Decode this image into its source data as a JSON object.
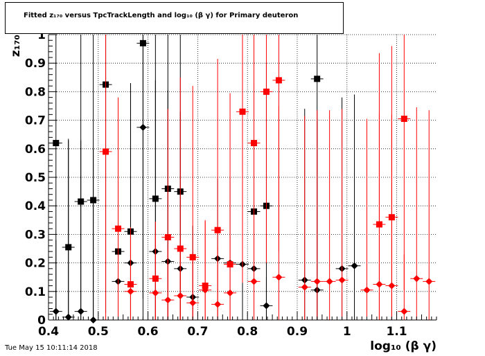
{
  "title": "Fitted  z₁₇₀  versus TpcTrackLength and log₁₀ (β γ) for Primary deuteron",
  "timestamp": "Tue May 15 10:11:14 2018",
  "chart_data": {
    "type": "scatter",
    "xlabel": "log₁₀ (β γ)",
    "ylabel": "z₁₇₀",
    "xlim": [
      0.4,
      1.18
    ],
    "ylim": [
      0,
      1
    ],
    "grid": true,
    "x_ticks": [
      "0.4",
      "0.5",
      "0.6",
      "0.7",
      "0.8",
      "0.9",
      "1",
      "1.1"
    ],
    "y_ticks": [
      "0",
      "0.1",
      "0.2",
      "0.3",
      "0.4",
      "0.5",
      "0.6",
      "0.7",
      "0.8",
      "0.9",
      "1"
    ],
    "series": [
      {
        "color": "#000000",
        "marker": "square",
        "points": [
          {
            "x": 0.415,
            "y": 0.62,
            "err": 0.62
          },
          {
            "x": 0.44,
            "y": 0.255,
            "err": 0.38
          },
          {
            "x": 0.465,
            "y": 0.415,
            "err": 0.6
          },
          {
            "x": 0.49,
            "y": 0.42,
            "err": 0.6
          },
          {
            "x": 0.515,
            "y": 0.825,
            "err": 0.8
          },
          {
            "x": 0.54,
            "y": 0.24,
            "err": 0.45
          },
          {
            "x": 0.565,
            "y": 0.31,
            "err": 0.52
          },
          {
            "x": 0.59,
            "y": 0.97,
            "err": 1
          },
          {
            "x": 0.615,
            "y": 0.425,
            "err": 0.6
          },
          {
            "x": 0.64,
            "y": 0.46,
            "err": 0.7
          },
          {
            "x": 0.665,
            "y": 0.45,
            "err": 0.6
          },
          {
            "x": 0.813,
            "y": 0.38,
            "err": 0.45
          },
          {
            "x": 0.838,
            "y": 0.4,
            "err": 0.5
          },
          {
            "x": 0.94,
            "y": 0.845,
            "err": 0.85
          }
        ]
      },
      {
        "color": "#000000",
        "marker": "diamond",
        "points": [
          {
            "x": 0.415,
            "y": 0.03,
            "err": 0.25
          },
          {
            "x": 0.44,
            "y": 0.01,
            "err": 0.62
          },
          {
            "x": 0.465,
            "y": 0.03,
            "err": 0.6
          },
          {
            "x": 0.49,
            "y": 0.0,
            "err": 0.6
          },
          {
            "x": 0.54,
            "y": 0.135,
            "err": 0.35
          },
          {
            "x": 0.565,
            "y": 0.2,
            "err": 0.63
          },
          {
            "x": 0.59,
            "y": 0.675,
            "err": 0.6
          },
          {
            "x": 0.615,
            "y": 0.24,
            "err": 0.6
          },
          {
            "x": 0.64,
            "y": 0.205,
            "err": 0.6
          },
          {
            "x": 0.665,
            "y": 0.18,
            "err": 0.55
          },
          {
            "x": 0.69,
            "y": 0.08,
            "err": 0.25
          },
          {
            "x": 0.74,
            "y": 0.215,
            "err": 0.28
          },
          {
            "x": 0.765,
            "y": 0.2,
            "err": 0.3
          },
          {
            "x": 0.79,
            "y": 0.195,
            "err": 0.3
          },
          {
            "x": 0.813,
            "y": 0.18,
            "err": 0.3
          },
          {
            "x": 0.838,
            "y": 0.05,
            "err": 0.1
          },
          {
            "x": 0.915,
            "y": 0.14,
            "err": 0.6
          },
          {
            "x": 0.94,
            "y": 0.105,
            "err": 0.6
          },
          {
            "x": 0.99,
            "y": 0.18,
            "err": 0.6
          },
          {
            "x": 1.015,
            "y": 0.19,
            "err": 0.6
          }
        ]
      },
      {
        "color": "#ff0000",
        "marker": "square",
        "points": [
          {
            "x": 0.515,
            "y": 0.59,
            "err": 0.6
          },
          {
            "x": 0.54,
            "y": 0.32,
            "err": 0.46
          },
          {
            "x": 0.565,
            "y": 0.125,
            "err": 0.2
          },
          {
            "x": 0.615,
            "y": 0.145,
            "err": 0.2
          },
          {
            "x": 0.64,
            "y": 0.29,
            "err": 0.45
          },
          {
            "x": 0.665,
            "y": 0.25,
            "err": 0.6
          },
          {
            "x": 0.69,
            "y": 0.22,
            "err": 0.6
          },
          {
            "x": 0.715,
            "y": 0.12,
            "err": 0.23
          },
          {
            "x": 0.74,
            "y": 0.315,
            "err": 0.6
          },
          {
            "x": 0.765,
            "y": 0.195,
            "err": 0.6
          },
          {
            "x": 0.79,
            "y": 0.73,
            "err": 0.6
          },
          {
            "x": 0.813,
            "y": 0.62,
            "err": 0.6
          },
          {
            "x": 0.838,
            "y": 0.8,
            "err": 0.6
          },
          {
            "x": 0.863,
            "y": 0.84,
            "err": 0.6
          },
          {
            "x": 1.065,
            "y": 0.335,
            "err": 0.6
          },
          {
            "x": 1.09,
            "y": 0.36,
            "err": 0.6
          },
          {
            "x": 1.115,
            "y": 0.705,
            "err": 0.6
          }
        ]
      },
      {
        "color": "#ff0000",
        "marker": "diamond",
        "points": [
          {
            "x": 0.565,
            "y": 0.1,
            "err": 0.2
          },
          {
            "x": 0.615,
            "y": 0.095,
            "err": 0.2
          },
          {
            "x": 0.64,
            "y": 0.07,
            "err": 0.18
          },
          {
            "x": 0.665,
            "y": 0.085,
            "err": 0.2
          },
          {
            "x": 0.69,
            "y": 0.06,
            "err": 0.18
          },
          {
            "x": 0.715,
            "y": 0.105,
            "err": 0.24
          },
          {
            "x": 0.74,
            "y": 0.055,
            "err": 0.2
          },
          {
            "x": 0.765,
            "y": 0.095,
            "err": 0.2
          },
          {
            "x": 0.813,
            "y": 0.135,
            "err": 0.2
          },
          {
            "x": 0.863,
            "y": 0.15,
            "err": 0.6
          },
          {
            "x": 0.915,
            "y": 0.115,
            "err": 0.6
          },
          {
            "x": 0.94,
            "y": 0.135,
            "err": 0.6
          },
          {
            "x": 0.965,
            "y": 0.135,
            "err": 0.6
          },
          {
            "x": 0.99,
            "y": 0.14,
            "err": 0.6
          },
          {
            "x": 1.04,
            "y": 0.105,
            "err": 0.6
          },
          {
            "x": 1.065,
            "y": 0.125,
            "err": 0.6
          },
          {
            "x": 1.09,
            "y": 0.12,
            "err": 0.6
          },
          {
            "x": 1.115,
            "y": 0.03,
            "err": 0.2
          },
          {
            "x": 1.14,
            "y": 0.145,
            "err": 0.6
          },
          {
            "x": 1.165,
            "y": 0.135,
            "err": 0.6
          }
        ]
      }
    ]
  }
}
